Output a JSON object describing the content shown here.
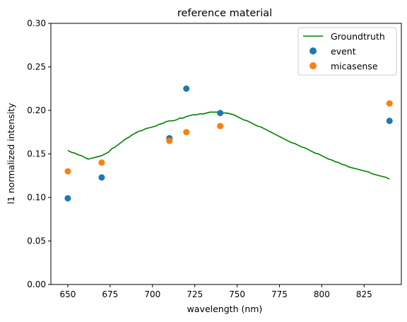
{
  "chart_data": {
    "type": "line",
    "title": "reference material",
    "xlabel": "wavelength (nm)",
    "ylabel": "l1 normalized intensity",
    "xlim": [
      640,
      847
    ],
    "ylim": [
      0.0,
      0.3
    ],
    "xticks": [
      650,
      675,
      700,
      725,
      750,
      775,
      800,
      825
    ],
    "xtick_labels": [
      "650",
      "675",
      "700",
      "725",
      "750",
      "775",
      "800",
      "825"
    ],
    "yticks": [
      0.0,
      0.05,
      0.1,
      0.15,
      0.2,
      0.25,
      0.3
    ],
    "ytick_labels": [
      "0.00",
      "0.05",
      "0.10",
      "0.15",
      "0.20",
      "0.25",
      "0.30"
    ],
    "grid": false,
    "legend_position": "upper right",
    "series": [
      {
        "name": "Groundtruth",
        "kind": "line",
        "color": "#008000",
        "x": [
          650,
          652,
          654,
          656,
          658,
          660,
          662,
          664,
          666,
          668,
          670,
          672,
          674,
          676,
          678,
          680,
          682,
          684,
          686,
          688,
          690,
          692,
          694,
          696,
          698,
          700,
          702,
          704,
          706,
          708,
          710,
          712,
          714,
          716,
          718,
          720,
          722,
          724,
          726,
          728,
          730,
          732,
          734,
          736,
          738,
          740,
          742,
          744,
          746,
          748,
          750,
          752,
          754,
          756,
          758,
          760,
          762,
          764,
          766,
          768,
          770,
          772,
          774,
          776,
          778,
          780,
          782,
          784,
          786,
          788,
          790,
          792,
          794,
          796,
          798,
          800,
          802,
          804,
          806,
          808,
          810,
          812,
          814,
          816,
          818,
          820,
          822,
          824,
          826,
          828,
          830,
          832,
          834,
          836,
          838,
          840
        ],
        "y": [
          0.154,
          0.152,
          0.151,
          0.149,
          0.148,
          0.146,
          0.144,
          0.145,
          0.146,
          0.147,
          0.148,
          0.15,
          0.152,
          0.156,
          0.158,
          0.161,
          0.164,
          0.167,
          0.169,
          0.172,
          0.174,
          0.176,
          0.177,
          0.179,
          0.18,
          0.181,
          0.182,
          0.184,
          0.185,
          0.187,
          0.188,
          0.188,
          0.189,
          0.191,
          0.191,
          0.193,
          0.194,
          0.195,
          0.195,
          0.196,
          0.196,
          0.197,
          0.198,
          0.198,
          0.198,
          0.198,
          0.197,
          0.197,
          0.196,
          0.195,
          0.193,
          0.191,
          0.189,
          0.188,
          0.186,
          0.184,
          0.182,
          0.181,
          0.179,
          0.177,
          0.175,
          0.173,
          0.171,
          0.169,
          0.167,
          0.165,
          0.163,
          0.162,
          0.16,
          0.158,
          0.157,
          0.155,
          0.153,
          0.151,
          0.15,
          0.148,
          0.146,
          0.144,
          0.143,
          0.141,
          0.14,
          0.138,
          0.137,
          0.135,
          0.134,
          0.133,
          0.132,
          0.131,
          0.13,
          0.129,
          0.127,
          0.126,
          0.125,
          0.124,
          0.123,
          0.121
        ]
      },
      {
        "name": "event",
        "kind": "scatter",
        "color": "#1f77b4",
        "x": [
          650,
          670,
          710,
          720,
          740,
          840
        ],
        "y": [
          0.099,
          0.123,
          0.168,
          0.225,
          0.197,
          0.188
        ]
      },
      {
        "name": "micasense",
        "kind": "scatter",
        "color": "#ff7f0e",
        "x": [
          650,
          670,
          710,
          720,
          740,
          840
        ],
        "y": [
          0.13,
          0.14,
          0.165,
          0.175,
          0.182,
          0.208
        ]
      }
    ]
  }
}
